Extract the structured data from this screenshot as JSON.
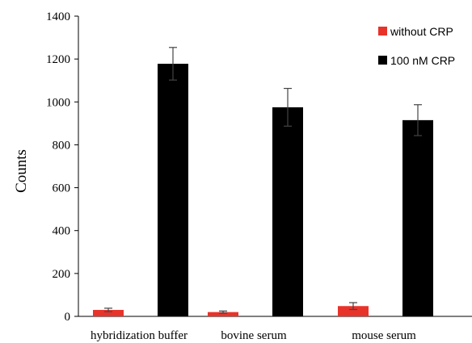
{
  "chart_data": {
    "type": "bar",
    "title": "",
    "xlabel": "",
    "ylabel": "Counts",
    "ylim": [
      0,
      1400
    ],
    "yticks": [
      0,
      200,
      400,
      600,
      800,
      1000,
      1200,
      1400
    ],
    "categories": [
      "hybridization buffer",
      "bovine serum",
      "mouse serum"
    ],
    "series": [
      {
        "name": "without CRP",
        "color": "#e8332a",
        "values": [
          30,
          20,
          48
        ],
        "errors": [
          8,
          5,
          16
        ]
      },
      {
        "name": "100 nM CRP",
        "color": "#000000",
        "values": [
          1178,
          975,
          915
        ],
        "errors": [
          76,
          88,
          72
        ]
      }
    ],
    "legend": "top-right",
    "grid": false
  }
}
